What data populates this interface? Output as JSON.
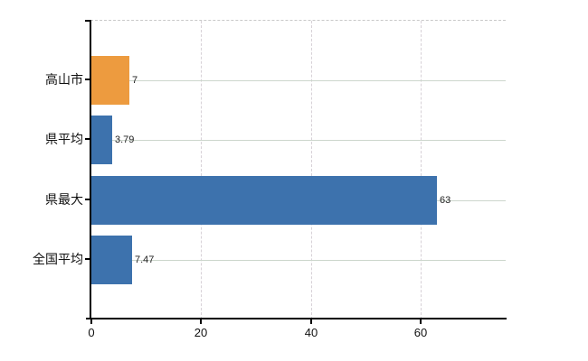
{
  "chart_data": {
    "type": "bar",
    "orientation": "horizontal",
    "categories": [
      "高山市",
      "県平均",
      "県最大",
      "全国平均"
    ],
    "values": [
      7,
      3.79,
      63,
      7.47
    ],
    "value_labels": [
      "7",
      "3.79",
      "63",
      "7.47"
    ],
    "bar_colors": [
      "#ed9b3f",
      "#3d72ad",
      "#3d72ad",
      "#3d72ad"
    ],
    "x_ticks": [
      0,
      20,
      40,
      60
    ],
    "x_tick_labels": [
      "0",
      "20",
      "40",
      "60"
    ],
    "xlim": [
      0,
      75.7
    ],
    "grid": {
      "vertical": "dashed",
      "horizontal": "solid"
    },
    "legend": "none",
    "xlabel": "",
    "ylabel": ""
  },
  "colors": {
    "background": "#ffffff",
    "bar_orange": "#ed9b3f",
    "bar_blue": "#3d72ad",
    "axis": "#000000",
    "h_gridline": "#ccd6cc",
    "v_gridline": "#d7d1d7",
    "plot_border_top": "#c9c9c9",
    "category_text": "#111111",
    "value_text": "#222222"
  }
}
